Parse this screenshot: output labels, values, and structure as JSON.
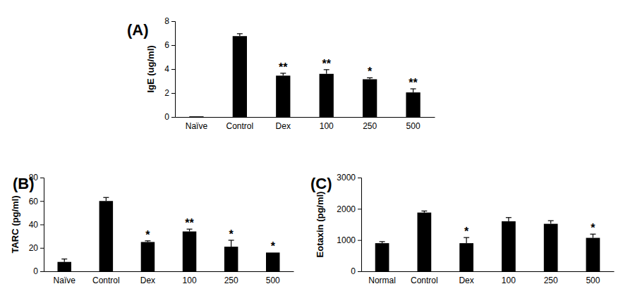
{
  "chart_data": [
    {
      "type": "bar",
      "title": "(A)",
      "y_label": "IgE (ug/ml)",
      "categories": [
        "Naïve",
        "Control",
        "Dex",
        "100",
        "250",
        "500"
      ],
      "values": [
        0.05,
        6.75,
        3.45,
        3.6,
        3.15,
        2.05
      ],
      "errors": [
        0,
        0.2,
        0.2,
        0.35,
        0.12,
        0.3
      ],
      "annotations": [
        null,
        null,
        "**",
        "**",
        "*",
        "**"
      ],
      "color": "#000000",
      "ylim": [
        0,
        8
      ],
      "yticks": [
        0,
        2,
        4,
        6,
        8
      ],
      "grid": false
    },
    {
      "type": "bar",
      "title": "(B)",
      "y_label": "TARC (pg/ml)",
      "categories": [
        "Naïve",
        "Control",
        "Dex",
        "100",
        "250",
        "500"
      ],
      "values": [
        8,
        60,
        25,
        34,
        21,
        16
      ],
      "errors": [
        2.5,
        3,
        1,
        2,
        5.5,
        0
      ],
      "annotations": [
        null,
        null,
        "*",
        "**",
        "*",
        "*"
      ],
      "color": "#000000",
      "ylim": [
        0,
        80
      ],
      "yticks": [
        0,
        20,
        40,
        60,
        80
      ],
      "grid": false
    },
    {
      "type": "bar",
      "title": "(C)",
      "y_label": "Eotaxin (pg/ml)",
      "categories": [
        "Normal",
        "Control",
        "Dex",
        "100",
        "250",
        "500"
      ],
      "values": [
        900,
        1880,
        900,
        1600,
        1520,
        1070
      ],
      "errors": [
        50,
        50,
        180,
        120,
        100,
        120
      ],
      "annotations": [
        null,
        null,
        "*",
        null,
        null,
        "*"
      ],
      "color": "#000000",
      "ylim": [
        0,
        3000
      ],
      "yticks": [
        0,
        1000,
        2000,
        3000
      ],
      "grid": false
    }
  ]
}
